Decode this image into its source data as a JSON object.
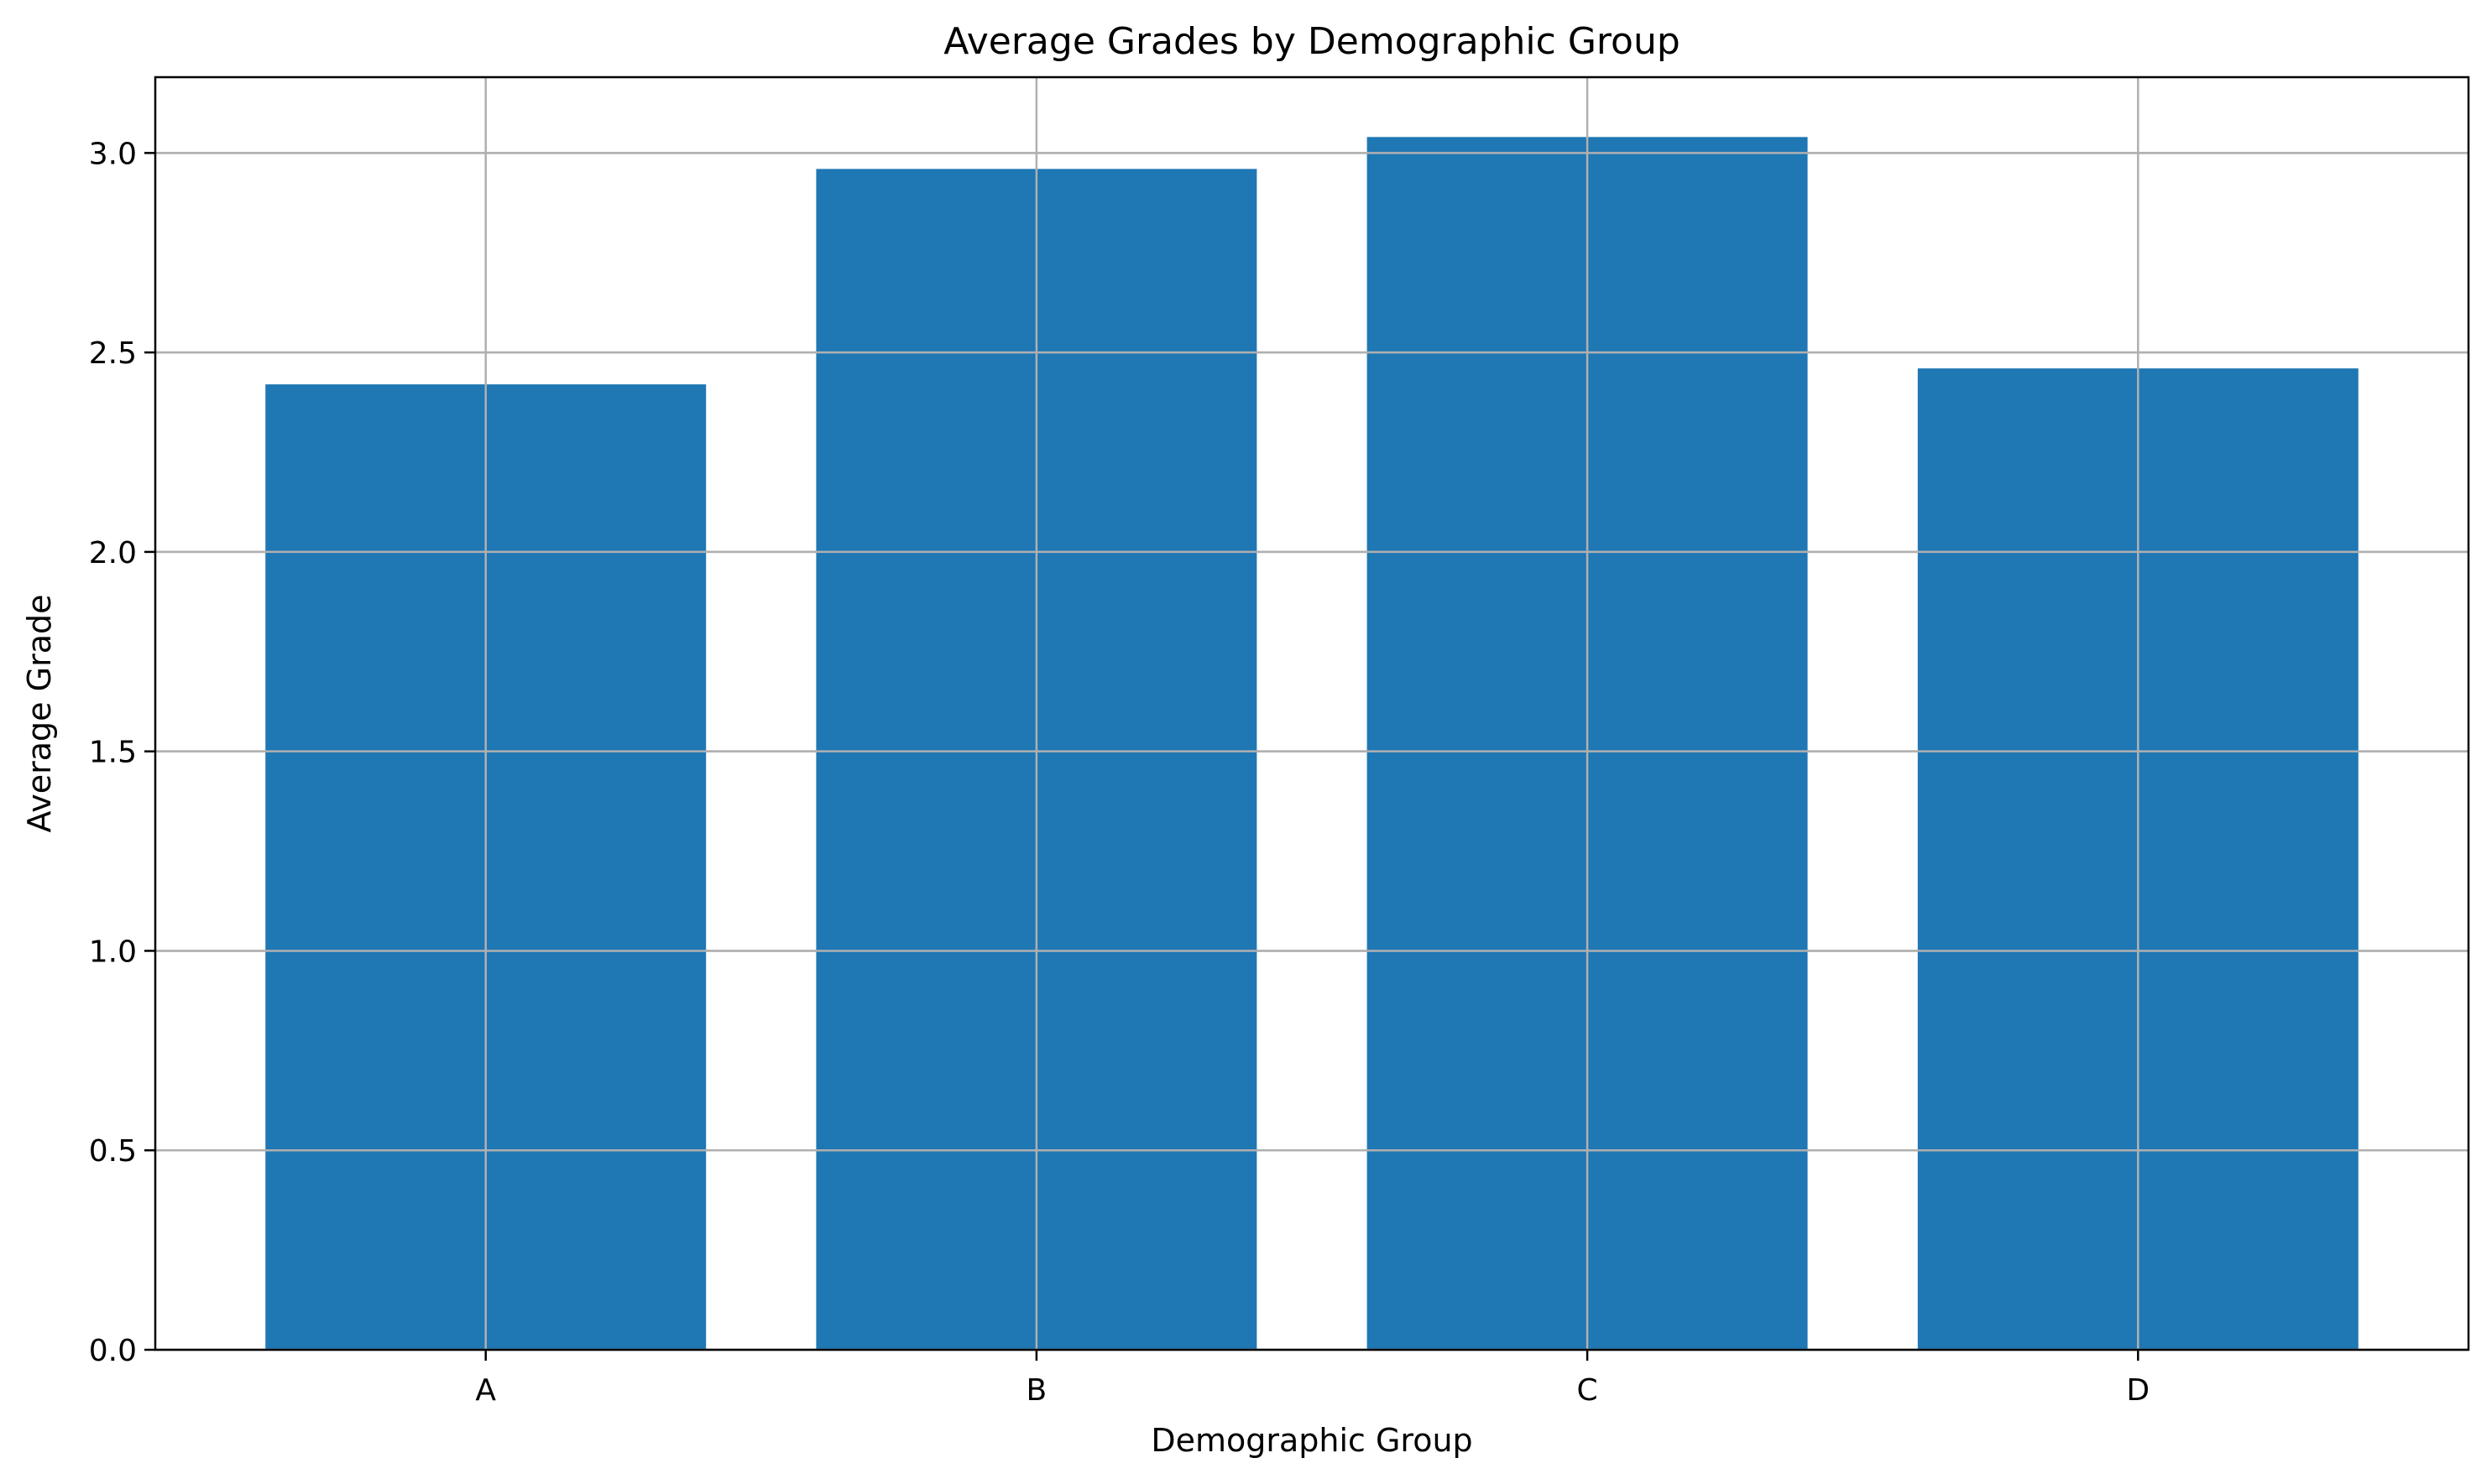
{
  "chart_data": {
    "type": "bar",
    "title": "Average Grades by Demographic Group",
    "xlabel": "Demographic Group",
    "ylabel": "Average Grade",
    "categories": [
      "A",
      "B",
      "C",
      "D"
    ],
    "values": [
      2.42,
      2.96,
      3.04,
      2.46
    ],
    "ylim": [
      0,
      3.19
    ],
    "yticks": [
      0.0,
      0.5,
      1.0,
      1.5,
      2.0,
      2.5,
      3.0
    ],
    "ytick_labels": [
      "0.0",
      "0.5",
      "1.0",
      "1.5",
      "2.0",
      "2.5",
      "3.0"
    ],
    "grid": true,
    "bar_color": "#1f77b4",
    "grid_color": "#b0b0b0"
  }
}
